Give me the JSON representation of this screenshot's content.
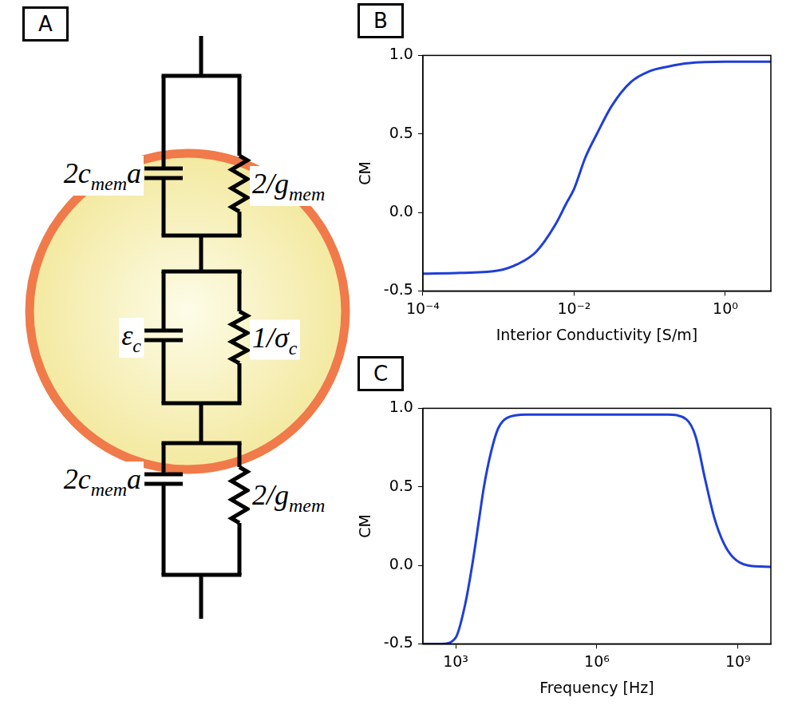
{
  "panel_labels": [
    "A",
    "B",
    "C"
  ],
  "diagram": {
    "components": [
      {
        "capacitor": {
          "base": "2c",
          "sub": "mem",
          "after": "a"
        },
        "resistor": {
          "base": "2/g",
          "sub": "mem"
        }
      },
      {
        "capacitor": {
          "base": "ε",
          "sub": "c"
        },
        "resistor": {
          "base": "1/σ",
          "sub": "c"
        }
      },
      {
        "capacitor": {
          "base": "2c",
          "sub": "mem",
          "after": "a"
        },
        "resistor": {
          "base": "2/g",
          "sub": "mem"
        }
      }
    ]
  },
  "chart_data": [
    {
      "type": "line",
      "x_label": "Interior Conductivity [S/m]",
      "y_label": "CM",
      "log": "x",
      "grid": false,
      "color": "#1f3fd8",
      "x": [
        0.0001,
        0.000316,
        0.001,
        0.00178,
        0.00316,
        0.00562,
        0.00794,
        0.01,
        0.0141,
        0.02,
        0.0316,
        0.0562,
        0.1,
        0.178,
        0.316,
        1,
        4
      ],
      "values": [
        -0.39,
        -0.385,
        -0.37,
        -0.33,
        -0.25,
        -0.08,
        0.06,
        0.15,
        0.35,
        0.5,
        0.68,
        0.83,
        0.9,
        0.93,
        0.95,
        0.96,
        0.96
      ],
      "xlim": [
        0.0001,
        4
      ],
      "xticks": [
        {
          "value": 0.0001,
          "label": "10⁻⁴"
        },
        {
          "value": 0.01,
          "label": "10⁻²"
        },
        {
          "value": 1,
          "label": "10⁰"
        }
      ],
      "ylim": [
        -0.5,
        1.0
      ],
      "yticks": [
        -0.5,
        {
          "value": 0,
          "label": "0.0"
        },
        0.5,
        {
          "value": 1,
          "label": "1.0"
        }
      ]
    },
    {
      "type": "line",
      "x_label": "Frequency [Hz]",
      "y_label": "CM",
      "log": "x",
      "grid": false,
      "color": "#1f3fd8",
      "x": [
        200,
        500,
        1000,
        1585,
        2239,
        3162,
        3981,
        5623,
        7943,
        12589,
        31623,
        1000000,
        31622777,
        79432823,
        125892541,
        199526231,
        316227766,
        501187234,
        794328235,
        1584893192,
        5000000000
      ],
      "values": [
        -0.5,
        -0.5,
        -0.46,
        -0.25,
        0.0,
        0.3,
        0.5,
        0.72,
        0.87,
        0.94,
        0.96,
        0.96,
        0.96,
        0.93,
        0.82,
        0.55,
        0.3,
        0.14,
        0.05,
        0.0,
        -0.01
      ],
      "xlim": [
        200,
        5000000000
      ],
      "xticks": [
        {
          "value": 1000,
          "label": "10³"
        },
        {
          "value": 1000000,
          "label": "10⁶"
        },
        {
          "value": 1000000000,
          "label": "10⁹"
        }
      ],
      "ylim": [
        -0.5,
        1.0
      ],
      "yticks": [
        -0.5,
        {
          "value": 0,
          "label": "0.0"
        },
        0.5,
        {
          "value": 1,
          "label": "1.0"
        }
      ]
    }
  ]
}
